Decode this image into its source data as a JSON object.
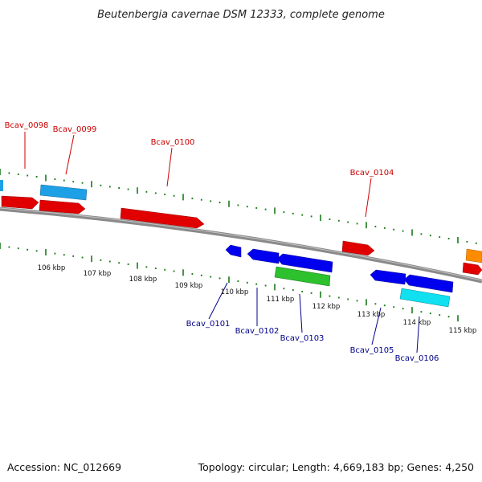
{
  "title": "Beutenbergia cavernae DSM 12333, complete genome",
  "footer": {
    "accession": "Accession: NC_012669",
    "summary": "Topology: circular; Length: 4,669,183 bp; Genes: 4,250"
  },
  "colors": {
    "forward_label": "#cc0000",
    "reverse_label": "#00008b",
    "tick": "#1a7a1a",
    "backbone": "#8a8a8a"
  },
  "scale_labels": [
    "106 kbp",
    "107 kbp",
    "108 kbp",
    "109 kbp",
    "110 kbp",
    "111 kbp",
    "112 kbp",
    "113 kbp",
    "114 kbp",
    "115 kbp"
  ],
  "upper_labels": [
    "Bcav_0098",
    "Bcav_0099",
    "Bcav_0100",
    "Bcav_0104"
  ],
  "lower_labels": [
    "Bcav_0101",
    "Bcav_0102",
    "Bcav_0103",
    "Bcav_0105",
    "Bcav_0106"
  ]
}
